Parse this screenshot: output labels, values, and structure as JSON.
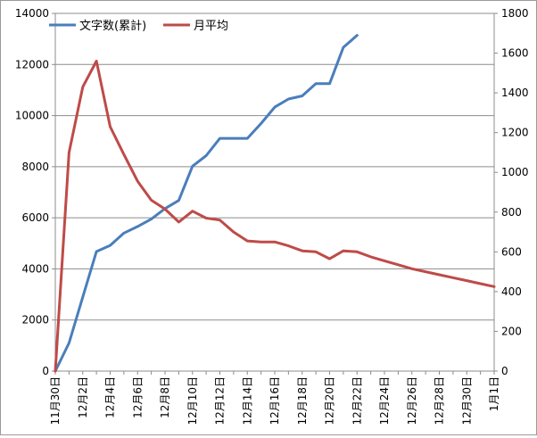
{
  "chart_data": {
    "type": "line",
    "x": [
      "11月30日",
      "12月1日",
      "12月2日",
      "12月3日",
      "12月4日",
      "12月5日",
      "12月6日",
      "12月7日",
      "12月8日",
      "12月9日",
      "12月10日",
      "12月11日",
      "12月12日",
      "12月13日",
      "12月14日",
      "12月15日",
      "12月16日",
      "12月17日",
      "12月18日",
      "12月19日",
      "12月20日",
      "12月21日",
      "12月22日",
      "12月23日",
      "12月24日",
      "12月25日",
      "12月26日",
      "12月27日",
      "12月28日",
      "12月29日",
      "12月30日",
      "12月31日",
      "1月1日"
    ],
    "x_tick_labels": [
      "11月30日",
      "12月2日",
      "12月4日",
      "12月6日",
      "12月8日",
      "12月10日",
      "12月12日",
      "12月14日",
      "12月16日",
      "12月18日",
      "12月20日",
      "12月22日",
      "12月24日",
      "12月26日",
      "12月28日",
      "12月30日",
      "1月1日"
    ],
    "series": [
      {
        "name": "文字数(累計)",
        "axis": "left",
        "color": "#4a7ebb",
        "values": [
          0,
          1100,
          2900,
          4680,
          4920,
          5400,
          5660,
          5950,
          6360,
          6680,
          8020,
          8430,
          9110,
          9110,
          9110,
          9690,
          10330,
          10650,
          10770,
          11250,
          11250,
          12670,
          13140,
          null,
          null,
          null,
          null,
          null,
          null,
          null,
          null,
          null,
          null
        ]
      },
      {
        "name": "月平均",
        "axis": "right",
        "color": "#be4b48",
        "values": [
          0,
          1100,
          1430,
          1560,
          1230,
          1090,
          955,
          860,
          815,
          750,
          805,
          770,
          760,
          700,
          655,
          650,
          650,
          630,
          605,
          600,
          565,
          605,
          600,
          575,
          555,
          535,
          515,
          500,
          485,
          470,
          455,
          440,
          425
        ]
      }
    ],
    "y_left": {
      "min": 0,
      "max": 14000,
      "step": 2000,
      "ticks": [
        "0",
        "2000",
        "4000",
        "6000",
        "8000",
        "10000",
        "12000",
        "14000"
      ]
    },
    "y_right": {
      "min": 0,
      "max": 1800,
      "step": 200,
      "ticks": [
        "0",
        "200",
        "400",
        "600",
        "800",
        "1000",
        "1200",
        "1400",
        "1600",
        "1800"
      ]
    },
    "grid": true,
    "legend_position": "top-left"
  }
}
